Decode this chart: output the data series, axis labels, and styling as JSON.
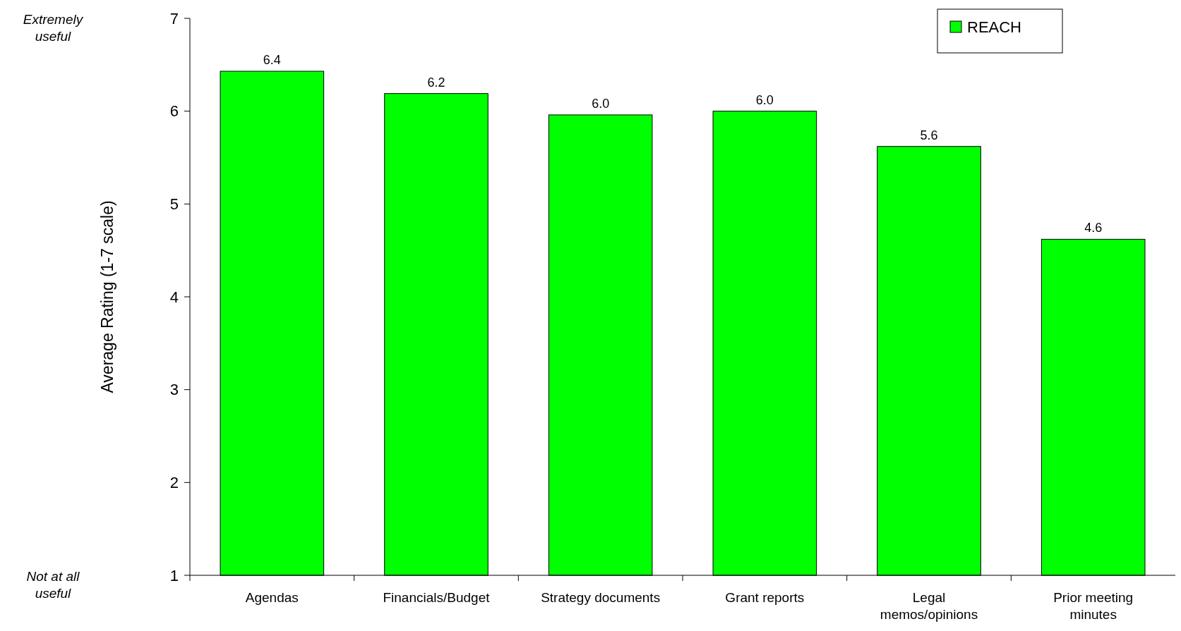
{
  "chart_data": {
    "type": "bar",
    "ylabel": "Average Rating (1-7 scale)",
    "categories": [
      "Agendas",
      "Financials/Budget",
      "Strategy documents",
      "Grant reports",
      "Legal memos/opinions",
      "Prior meeting minutes"
    ],
    "series": [
      {
        "name": "REACH",
        "color": "#00ff00",
        "values": [
          6.43,
          6.19,
          5.96,
          6.0,
          5.62,
          4.62
        ],
        "value_labels": [
          "6.4",
          "6.2",
          "6.0",
          "6.0",
          "5.6",
          "4.6"
        ]
      }
    ],
    "ylim": [
      1,
      7
    ],
    "yticks": [
      1,
      2,
      3,
      4,
      5,
      6,
      7
    ],
    "grid": false,
    "legend": "top right",
    "annotations": [
      "Extremely useful",
      "Not at all useful"
    ]
  }
}
